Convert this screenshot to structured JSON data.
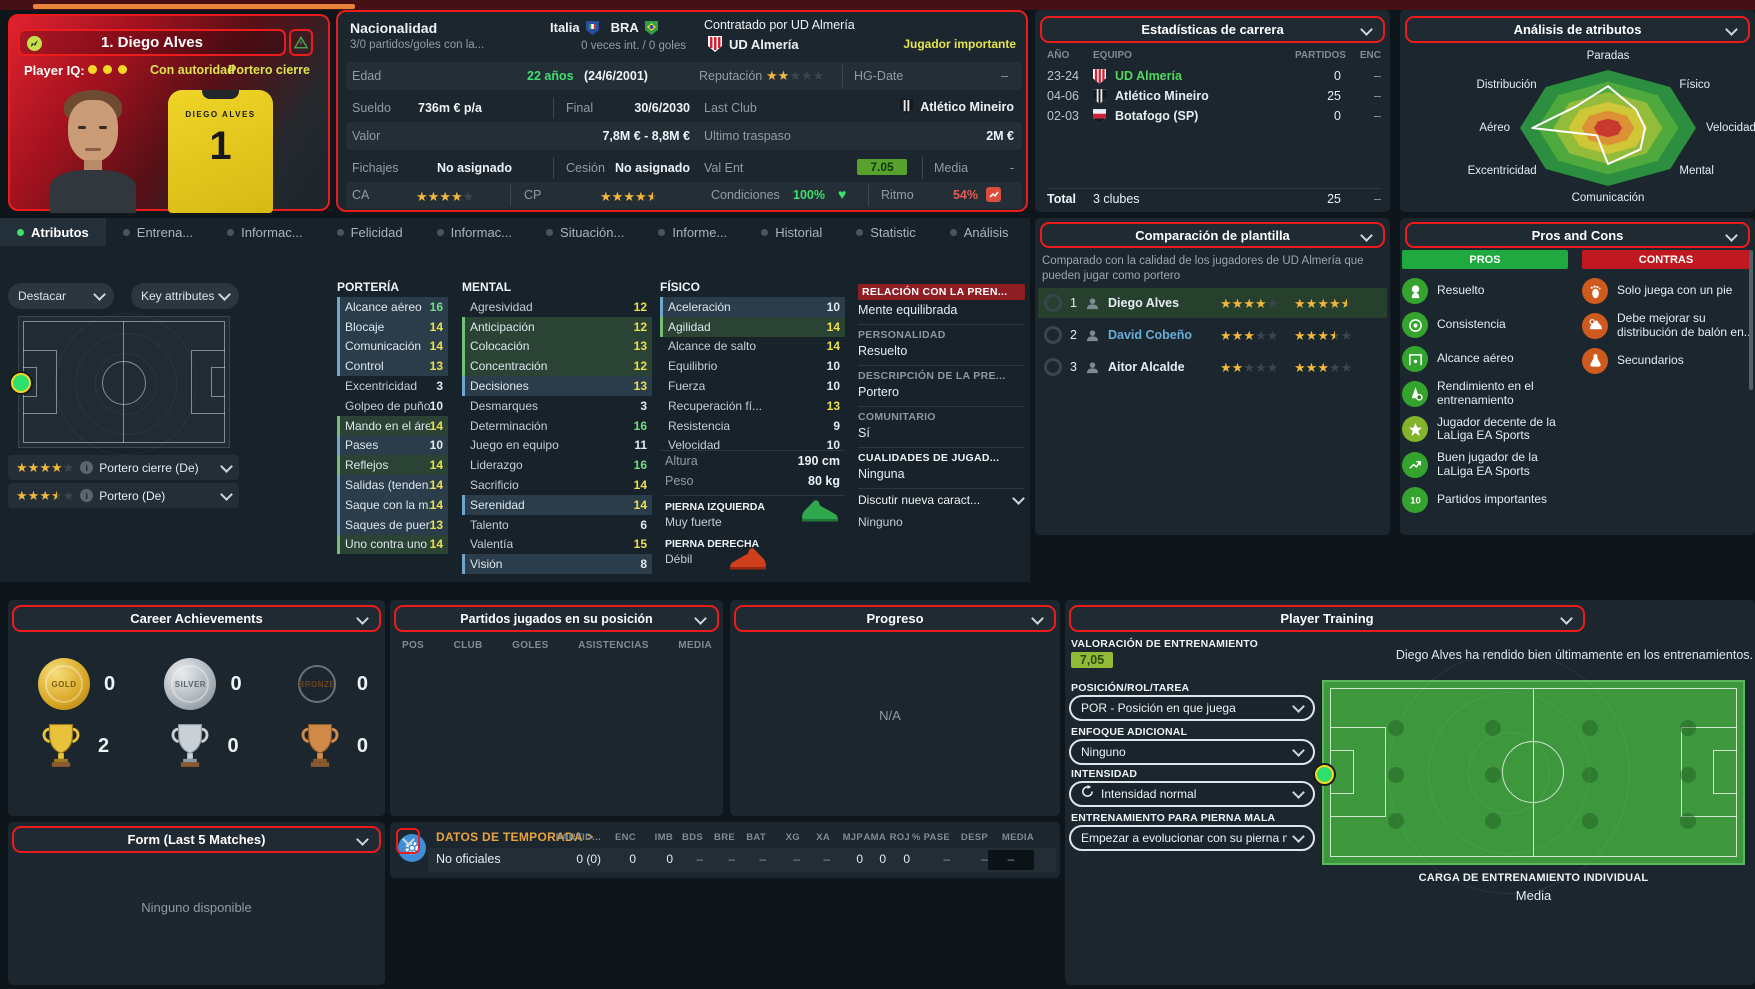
{
  "player_card": {
    "title": "1. Diego Alves",
    "iq_label": "Player IQ:",
    "trait1": "Con autoridad",
    "trait2": "Portero cierre",
    "shirt_name": "DIEGO ALVES",
    "shirt_number": "1"
  },
  "info": {
    "nacionalidad_label": "Nacionalidad",
    "nacionalidad_sub": "3/0 partidos/goles con la...",
    "nat1": "Italia",
    "nat2": "BRA",
    "int_record": "0 veces int. / 0 goles",
    "contratado_label": "Contratado por UD Almería",
    "club": "UD Almería",
    "club_status": "Jugador importante",
    "edad_label": "Edad",
    "edad_value": "22 años",
    "edad_fecha": "(24/6/2001)",
    "reputacion_label": "Reputación",
    "reputacion_stars": 2,
    "hg_label": "HG-Date",
    "hg_value": "–",
    "sueldo_label": "Sueldo",
    "sueldo_value": "736m € p/a",
    "final_label": "Final",
    "final_value": "30/6/2030",
    "lastclub_label": "Last Club",
    "lastclub_value": "Atlético Mineiro",
    "valor_label": "Valor",
    "valor_value": "7,8M € - 8,8M €",
    "traspaso_label": "Ultimo traspaso",
    "traspaso_value": "2M €",
    "fichajes_label": "Fichajes",
    "fichajes_value": "No asignado",
    "cesion_label": "Cesión",
    "cesion_value": "No asignado",
    "valent_label": "Val Ent",
    "valent_value": "7.05",
    "media_label": "Media",
    "media_value": "-",
    "ca_label": "CA",
    "ca_stars": 4,
    "cp_label": "CP",
    "cp_stars": 4.5,
    "condiciones_label": "Condiciones",
    "condiciones_value": "100%",
    "ritmo_label": "Ritmo",
    "ritmo_value": "54%"
  },
  "career_stats": {
    "title": "Estadísticas de carrera",
    "cols": [
      "AÑO",
      "EQUIPO",
      "PARTIDOS",
      "ENC"
    ],
    "rows": [
      {
        "year": "23-24",
        "team": "UD Almería",
        "apps": "0",
        "enc": "–",
        "crest": "almeria",
        "current": true
      },
      {
        "year": "04-06",
        "team": "Atlético Mineiro",
        "apps": "25",
        "enc": "–",
        "crest": "mineiro",
        "current": false
      },
      {
        "year": "02-03",
        "team": "Botafogo (SP)",
        "apps": "0",
        "enc": "–",
        "crest": "botafogo",
        "current": false
      }
    ],
    "total_label": "Total",
    "total_clubs": "3 clubes",
    "total_apps": "25",
    "total_enc": "–"
  },
  "radar": {
    "title": "Análisis de atributos",
    "axes": [
      {
        "label": "Paradas",
        "value": 0.72
      },
      {
        "label": "Físico",
        "value": 0.45
      },
      {
        "label": "Velocidad",
        "value": 0.42
      },
      {
        "label": "Mental",
        "value": 0.52
      },
      {
        "label": "Comunicación",
        "value": 0.62
      },
      {
        "label": "Excentricidad",
        "value": 0.18
      },
      {
        "label": "Aéreo",
        "value": 0.86
      },
      {
        "label": "Distribución",
        "value": 0.52
      }
    ]
  },
  "tabs": [
    {
      "label": "Atributos",
      "active": true
    },
    {
      "label": "Entrena...",
      "active": false
    },
    {
      "label": "Informac...",
      "active": false
    },
    {
      "label": "Felicidad",
      "active": false
    },
    {
      "label": "Informac...",
      "active": false
    },
    {
      "label": "Situación...",
      "active": false
    },
    {
      "label": "Informe...",
      "active": false
    },
    {
      "label": "Historial",
      "active": false
    },
    {
      "label": "Statistic",
      "active": false
    },
    {
      "label": "Análisis",
      "active": false
    }
  ],
  "attributes": {
    "destacar": "Destacar",
    "key_attributes": "Key attributes",
    "roles": [
      {
        "stars": 4,
        "label": "Portero cierre (De)"
      },
      {
        "stars": 3.5,
        "label": "Portero (De)"
      }
    ],
    "groups": [
      {
        "title": "PORTERÍA",
        "rows": [
          {
            "n": "Alcance aéreo",
            "v": 16,
            "h": "blue"
          },
          {
            "n": "Blocaje",
            "v": 14,
            "h": "blue"
          },
          {
            "n": "Comunicación",
            "v": 14,
            "h": "blue"
          },
          {
            "n": "Control",
            "v": 13,
            "h": "blue"
          },
          {
            "n": "Excentricidad",
            "v": 3,
            "h": ""
          },
          {
            "n": "Golpeo de puño...",
            "v": 10,
            "h": ""
          },
          {
            "n": "Mando en el área",
            "v": 14,
            "h": "green"
          },
          {
            "n": "Pases",
            "v": 10,
            "h": "blue"
          },
          {
            "n": "Reflejos",
            "v": 14,
            "h": "green"
          },
          {
            "n": "Salidas (tenden...",
            "v": 14,
            "h": "blue"
          },
          {
            "n": "Saque con la m...",
            "v": 14,
            "h": "blue"
          },
          {
            "n": "Saques de puer...",
            "v": 13,
            "h": "blue"
          },
          {
            "n": "Uno contra uno",
            "v": 14,
            "h": "green"
          }
        ]
      },
      {
        "title": "MENTAL",
        "rows": [
          {
            "n": "Agresividad",
            "v": 12,
            "h": ""
          },
          {
            "n": "Anticipación",
            "v": 12,
            "h": "green"
          },
          {
            "n": "Colocación",
            "v": 13,
            "h": "green"
          },
          {
            "n": "Concentración",
            "v": 12,
            "h": "green"
          },
          {
            "n": "Decisiones",
            "v": 13,
            "h": "blue"
          },
          {
            "n": "Desmarques",
            "v": 3,
            "h": ""
          },
          {
            "n": "Determinación",
            "v": 16,
            "h": ""
          },
          {
            "n": "Juego en equipo",
            "v": 11,
            "h": ""
          },
          {
            "n": "Liderazgo",
            "v": 16,
            "h": ""
          },
          {
            "n": "Sacrificio",
            "v": 14,
            "h": ""
          },
          {
            "n": "Serenidad",
            "v": 14,
            "h": "blue"
          },
          {
            "n": "Talento",
            "v": 6,
            "h": ""
          },
          {
            "n": "Valentía",
            "v": 15,
            "h": ""
          },
          {
            "n": "Visión",
            "v": 8,
            "h": "blue"
          }
        ]
      },
      {
        "title": "FÍSICO",
        "rows": [
          {
            "n": "Aceleración",
            "v": 10,
            "h": "blue"
          },
          {
            "n": "Agilidad",
            "v": 14,
            "h": "green"
          },
          {
            "n": "Alcance de salto",
            "v": 14,
            "h": ""
          },
          {
            "n": "Equilibrio",
            "v": 10,
            "h": ""
          },
          {
            "n": "Fuerza",
            "v": 10,
            "h": ""
          },
          {
            "n": "Recuperación fí...",
            "v": 13,
            "h": ""
          },
          {
            "n": "Resistencia",
            "v": 9,
            "h": ""
          },
          {
            "n": "Velocidad",
            "v": 10,
            "h": ""
          }
        ]
      }
    ],
    "altura_label": "Altura",
    "altura_value": "190 cm",
    "peso_label": "Peso",
    "peso_value": "80 kg",
    "left_foot_label": "PIERNA IZQUIERDA",
    "left_foot_value": "Muy fuerte",
    "right_foot_label": "PIERNA DERECHA",
    "right_foot_value": "Débil"
  },
  "press": {
    "sections": [
      {
        "h": "RELACIÓN CON LA PREN...",
        "v": "Mente equilibrada",
        "style": "red"
      },
      {
        "h": "PERSONALIDAD",
        "v": "Resuelto",
        "style": ""
      },
      {
        "h": "DESCRIPCIÓN DE LA PRE...",
        "v": "Portero",
        "style": ""
      },
      {
        "h": "COMUNITARIO",
        "v": "Sí",
        "style": ""
      },
      {
        "h": "CUALIDADES DE JUGAD...",
        "v": "Ninguna",
        "style": "white"
      }
    ],
    "dropdown": "Discutir nueva caract...",
    "dropdown_value": "Ninguno"
  },
  "comparison": {
    "title": "Comparación de plantilla",
    "desc": "Comparado con la calidad de los jugadores de UD Almería que pueden jugar como portero",
    "rows": [
      {
        "rank": "1",
        "name": "Diego Alves",
        "cur": 4,
        "pot": 4.5,
        "selected": true,
        "link": false
      },
      {
        "rank": "2",
        "name": "David Cobeño",
        "cur": 3,
        "pot": 3.5,
        "selected": false,
        "link": true
      },
      {
        "rank": "3",
        "name": "Aitor Alcalde",
        "cur": 2,
        "pot": 3,
        "selected": false,
        "link": false
      }
    ]
  },
  "pros_cons": {
    "title": "Pros and Cons",
    "pros_header": "PROS",
    "contras_header": "CONTRAS",
    "pros": [
      {
        "icon": "head",
        "text": "Resuelto"
      },
      {
        "icon": "target",
        "text": "Consistencia"
      },
      {
        "icon": "crossbar",
        "text": "Alcance aéreo"
      },
      {
        "icon": "cone",
        "text": "Rendimiento en el entrenamiento"
      },
      {
        "icon": "star",
        "text": "Jugador decente de la LaLiga EA Sports"
      },
      {
        "icon": "trend",
        "text": "Buen jugador de la LaLiga EA Sports"
      },
      {
        "icon": "matches",
        "text": "Partidos importantes"
      }
    ],
    "contras": [
      {
        "icon": "foot",
        "text": "Solo juega con un pie"
      },
      {
        "icon": "boot",
        "text": "Debe mejorar su distribución de balón en..."
      },
      {
        "icon": "flask",
        "text": "Secundarios"
      }
    ]
  },
  "achievements": {
    "title": "Career Achievements",
    "medals": [
      {
        "tier": "gold",
        "label": "GOLD",
        "count": "0"
      },
      {
        "tier": "silver",
        "label": "SILVER",
        "count": "0"
      },
      {
        "tier": "bronze",
        "label": "BRONZE",
        "count": "0"
      }
    ],
    "trophies": [
      {
        "tier": "gold",
        "count": "2"
      },
      {
        "tier": "silver",
        "count": "0"
      },
      {
        "tier": "bronze",
        "count": "0"
      }
    ]
  },
  "matches": {
    "title": "Partidos jugados en su posición",
    "cols": [
      "POS",
      "CLUB",
      "GOLES",
      "ASISTENCIAS",
      "MEDIA"
    ]
  },
  "progress": {
    "title": "Progreso",
    "empty": "N/A"
  },
  "season": {
    "label": "DATOS DE TEMPORADA >",
    "row_label": "No oficiales",
    "cols": [
      "PARTID...",
      "ENC",
      "IMB",
      "BDS",
      "BRE",
      "BAT",
      "XG",
      "XA",
      "MJP",
      "AMA",
      "ROJ",
      "% PASE",
      "DESP",
      "MEDIA"
    ],
    "values": [
      "0 (0)",
      "0",
      "0",
      "–",
      "–",
      "–",
      "–",
      "–",
      "0",
      "0",
      "0",
      "–",
      "–",
      "–"
    ]
  },
  "form": {
    "title": "Form (Last 5 Matches)",
    "empty": "Ninguno disponible"
  },
  "training": {
    "title": "Player Training",
    "rating_label": "VALORACIÓN DE ENTRENAMIENTO",
    "rating_value": "7,05",
    "note": "Diego Alves ha rendido bien últimamente en los entrenamientos.",
    "fields": [
      {
        "label": "POSICIÓN/ROL/TAREA",
        "value": "POR - Posición en que juega",
        "icon": ""
      },
      {
        "label": "ENFOQUE ADICIONAL",
        "value": "Ninguno",
        "icon": ""
      },
      {
        "label": "INTENSIDAD",
        "value": "Intensidad normal",
        "icon": "refresh"
      },
      {
        "label": "ENTRENAMIENTO PARA PIERNA MALA",
        "value": "Empezar a evolucionar con su pierna ma...",
        "icon": ""
      }
    ],
    "load_label": "CARGA DE ENTRENAMIENTO INDIVIDUAL",
    "load_value": "Media"
  }
}
